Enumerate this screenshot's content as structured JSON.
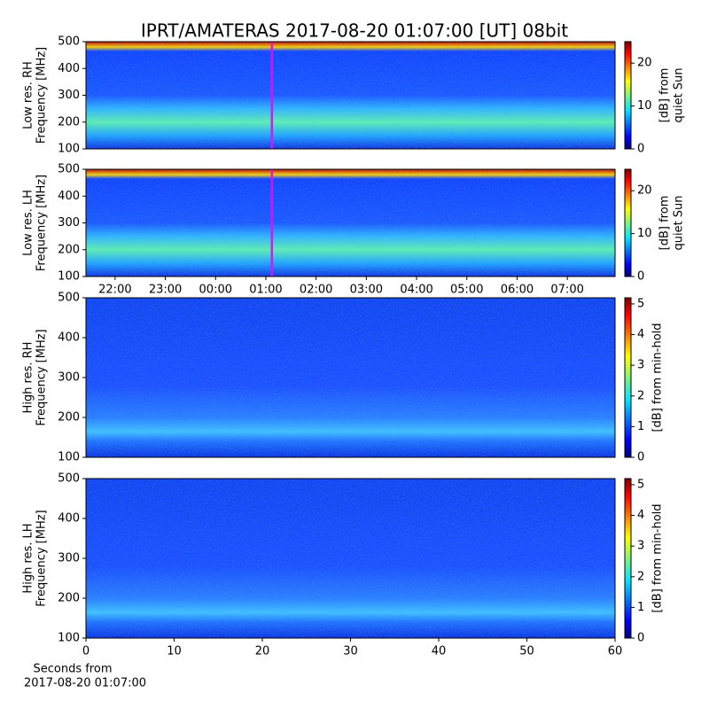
{
  "chart_data": [
    {
      "type": "spectrogram",
      "title": "IPRT/AMATERAS 2017-08-20 01:07:00 [UT]   08bit",
      "ylabel": [
        "Low res. RH",
        "Frequency [MHz]"
      ],
      "ylim": [
        100,
        500
      ],
      "yticks": [
        100,
        200,
        300,
        400,
        500
      ],
      "xlim": [
        21.42,
        31.95
      ],
      "marker": 25.12,
      "colorbar_label": [
        "[dB] from",
        "quiet Sun"
      ],
      "clim": [
        0,
        25
      ],
      "cticks": [
        0,
        10,
        20
      ]
    },
    {
      "type": "spectrogram",
      "ylabel": [
        "Low res. LH",
        "Frequency [MHz]"
      ],
      "ylim": [
        100,
        500
      ],
      "yticks": [
        100,
        200,
        300,
        400,
        500
      ],
      "xlim": [
        21.42,
        31.95
      ],
      "marker": 25.12,
      "xticks": [
        {
          "value": 22,
          "label": "22:00"
        },
        {
          "value": 23,
          "label": "23:00"
        },
        {
          "value": 24,
          "label": "00:00"
        },
        {
          "value": 25,
          "label": "01:00"
        },
        {
          "value": 26,
          "label": "02:00"
        },
        {
          "value": 27,
          "label": "03:00"
        },
        {
          "value": 28,
          "label": "04:00"
        },
        {
          "value": 29,
          "label": "05:00"
        },
        {
          "value": 30,
          "label": "06:00"
        },
        {
          "value": 31,
          "label": "07:00"
        }
      ],
      "colorbar_label": [
        "[dB] from",
        "quiet Sun"
      ],
      "clim": [
        0,
        25
      ],
      "cticks": [
        0,
        10,
        20
      ]
    },
    {
      "type": "spectrogram",
      "ylabel": [
        "High res. RH",
        "Frequency [MHz]"
      ],
      "ylim": [
        100,
        500
      ],
      "yticks": [
        100,
        200,
        300,
        400,
        500
      ],
      "xlim": [
        0,
        60
      ],
      "colorbar_label": [
        "[dB] from min-hold"
      ],
      "clim": [
        0,
        5.2
      ],
      "cticks": [
        0,
        1,
        2,
        3,
        4,
        5
      ]
    },
    {
      "type": "spectrogram",
      "ylabel": [
        "High res. LH",
        "Frequency [MHz]"
      ],
      "ylim": [
        100,
        500
      ],
      "yticks": [
        100,
        200,
        300,
        400,
        500
      ],
      "xlim": [
        0,
        60
      ],
      "xticks": [
        0,
        10,
        20,
        30,
        40,
        50,
        60
      ],
      "xlabel": [
        "Seconds from",
        "2017-08-20 01:07:00"
      ],
      "colorbar_label": [
        "[dB] from min-hold"
      ],
      "clim": [
        0,
        5.2
      ],
      "cticks": [
        0,
        1,
        2,
        3,
        4,
        5
      ]
    }
  ]
}
